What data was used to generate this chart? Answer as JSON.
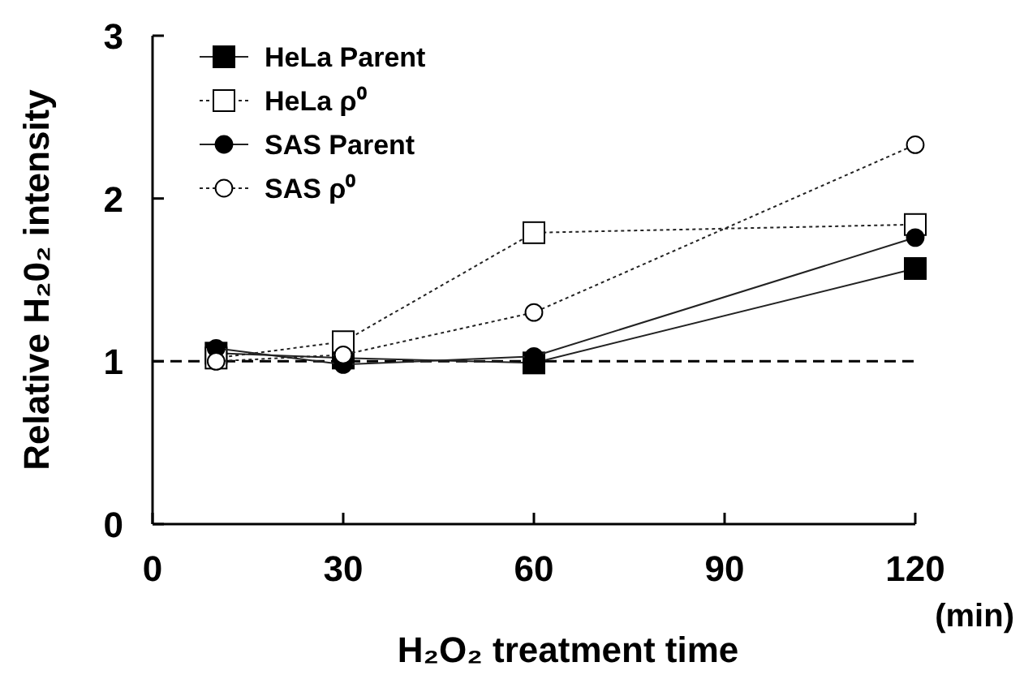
{
  "chart_data": {
    "type": "line",
    "xlabel": "H₂O₂ treatment time",
    "ylabel": "Relative H₂0₂ intensity",
    "x": [
      10,
      30,
      60,
      120
    ],
    "series": [
      {
        "name": "HeLa Parent",
        "color": "#000000",
        "marker": "square",
        "line_style": "solid",
        "values": [
          1.05,
          1.02,
          0.99,
          1.57
        ]
      },
      {
        "name": "HeLa ρ⁰",
        "color": "#ffffff",
        "marker": "square",
        "line_style": "dotted",
        "values": [
          1.02,
          1.12,
          1.79,
          1.84
        ]
      },
      {
        "name": "SAS Parent",
        "color": "#000000",
        "marker": "circle",
        "line_style": "solid",
        "values": [
          1.08,
          0.98,
          1.03,
          1.76
        ]
      },
      {
        "name": "SAS ρ⁰",
        "color": "#ffffff",
        "marker": "circle",
        "line_style": "dotted",
        "values": [
          1.0,
          1.04,
          1.3,
          2.33
        ]
      }
    ],
    "xlim": [
      0,
      120
    ],
    "xticks": [
      0,
      30,
      60,
      90,
      120
    ],
    "ylim": [
      0,
      3
    ],
    "yticks": [
      0,
      1,
      2,
      3
    ],
    "ref_lines": [
      {
        "axis": "y",
        "value": 1,
        "line_style": "dashed",
        "color": "#000000"
      }
    ],
    "annotations": [
      "(min)"
    ],
    "grid": false,
    "legend": "top left"
  }
}
